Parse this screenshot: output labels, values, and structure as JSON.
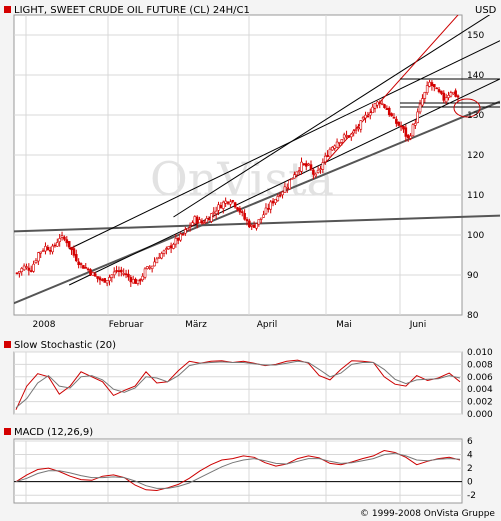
{
  "header": {
    "title": "LIGHT, SWEET CRUDE OIL FUTURE (CL) 24H/C1",
    "currency": "USD"
  },
  "watermark": "OnVista",
  "footer": {
    "copyright": "© 1999-2008 OnVista Gruppe"
  },
  "colors": {
    "candle": "#d40000",
    "channel": "#000000",
    "trend_gray": "#555555",
    "red_line": "#cc0000",
    "grid": "#d8d8d8",
    "background": "#ffffff",
    "page": "#f4f4f4"
  },
  "chart_data": [
    {
      "type": "candlestick",
      "title": "LIGHT, SWEET CRUDE OIL FUTURE (CL) 24H/C1",
      "unit_label": "USD",
      "x_tick_labels": [
        "2008",
        "Februar",
        "März",
        "April",
        "Mai",
        "Juni"
      ],
      "y_ticks": [
        80,
        90,
        100,
        110,
        120,
        130,
        140,
        150
      ],
      "ylim": [
        80,
        155
      ],
      "grid": true,
      "price_path": [
        [
          0,
          90.5
        ],
        [
          3,
          92.0
        ],
        [
          6,
          91.5
        ],
        [
          9,
          95.5
        ],
        [
          12,
          97.0
        ],
        [
          15,
          96.5
        ],
        [
          18,
          99.5
        ],
        [
          21,
          98.5
        ],
        [
          24,
          95.0
        ],
        [
          27,
          92.5
        ],
        [
          30,
          91.5
        ],
        [
          33,
          89.5
        ],
        [
          36,
          88.5
        ],
        [
          39,
          89.5
        ],
        [
          42,
          91.0
        ],
        [
          45,
          90.5
        ],
        [
          48,
          89.0
        ],
        [
          51,
          88.0
        ],
        [
          54,
          91.0
        ],
        [
          57,
          92.5
        ],
        [
          60,
          95.0
        ],
        [
          63,
          96.0
        ],
        [
          66,
          98.0
        ],
        [
          69,
          99.5
        ],
        [
          72,
          101.5
        ],
        [
          75,
          104.0
        ],
        [
          78,
          103.0
        ],
        [
          81,
          104.5
        ],
        [
          84,
          106.5
        ],
        [
          87,
          108.0
        ],
        [
          90,
          109.0
        ],
        [
          93,
          107.0
        ],
        [
          96,
          104.0
        ],
        [
          99,
          102.0
        ],
        [
          102,
          103.5
        ],
        [
          105,
          106.0
        ],
        [
          108,
          108.5
        ],
        [
          111,
          110.5
        ],
        [
          114,
          112.5
        ],
        [
          117,
          115.5
        ],
        [
          120,
          117.5
        ],
        [
          123,
          117.0
        ],
        [
          126,
          114.5
        ],
        [
          129,
          118.0
        ],
        [
          132,
          121.5
        ],
        [
          135,
          123.5
        ],
        [
          138,
          124.5
        ],
        [
          141,
          125.0
        ],
        [
          144,
          127.0
        ],
        [
          147,
          129.5
        ],
        [
          150,
          132.0
        ],
        [
          153,
          133.5
        ],
        [
          156,
          131.5
        ],
        [
          159,
          128.5
        ],
        [
          162,
          127.0
        ],
        [
          165,
          124.0
        ],
        [
          168,
          128.5
        ],
        [
          171,
          134.0
        ],
        [
          174,
          138.0
        ],
        [
          177,
          136.0
        ],
        [
          180,
          134.0
        ],
        [
          183,
          136.0
        ],
        [
          186,
          134.5
        ]
      ],
      "channel_lines": [
        {
          "x1": 22,
          "y1": 87.5,
          "x2": 186,
          "y2": 134.0
        },
        {
          "x1": 22,
          "y1": 96.5,
          "x2": 186,
          "y2": 143.5
        },
        {
          "x1": 66,
          "y1": 104.5,
          "x2": 186,
          "y2": 150.0
        }
      ],
      "trend_lines": [
        {
          "x1": 0,
          "y1": 81.5,
          "x2": 186,
          "y2": 129.0
        },
        {
          "x1": 0,
          "y1": 100.8,
          "x2": 186,
          "y2": 104.5
        }
      ],
      "red_trend_line": {
        "x1": 130,
        "y1": 118.0,
        "x2": 186,
        "y2": 155.0
      },
      "horizontal_lines": [
        139.0,
        133.0,
        132.0
      ]
    },
    {
      "type": "line",
      "title": "Slow Stochastic (20)",
      "y_ticks": [
        "0.010",
        "0.008",
        "0.006",
        "0.004",
        "0.002",
        "0.000"
      ],
      "ylim": [
        0.0,
        0.01
      ],
      "series": [
        {
          "color": "#cc0000",
          "values": [
            0.0007,
            0.0045,
            0.0065,
            0.006,
            0.0032,
            0.0045,
            0.0068,
            0.006,
            0.0052,
            0.003,
            0.0038,
            0.0045,
            0.0068,
            0.005,
            0.0052,
            0.007,
            0.0085,
            0.0082,
            0.0085,
            0.0086,
            0.0083,
            0.0085,
            0.0082,
            0.0078,
            0.008,
            0.0085,
            0.0087,
            0.0082,
            0.0062,
            0.0055,
            0.0072,
            0.0086,
            0.0085,
            0.0083,
            0.006,
            0.0048,
            0.0045,
            0.0062,
            0.0054,
            0.0058,
            0.0066,
            0.0052
          ]
        },
        {
          "color": "#777777",
          "values": [
            0.001,
            0.0025,
            0.005,
            0.0062,
            0.0045,
            0.0042,
            0.006,
            0.0062,
            0.0055,
            0.004,
            0.0035,
            0.0042,
            0.006,
            0.0058,
            0.0052,
            0.0062,
            0.0078,
            0.0082,
            0.0083,
            0.0084,
            0.0083,
            0.0083,
            0.0081,
            0.0079,
            0.0079,
            0.0082,
            0.0085,
            0.0083,
            0.0072,
            0.006,
            0.0066,
            0.008,
            0.0083,
            0.0083,
            0.0072,
            0.0056,
            0.0049,
            0.0055,
            0.0056,
            0.0057,
            0.0062,
            0.0058
          ]
        }
      ]
    },
    {
      "type": "line",
      "title": "MACD (12,26,9)",
      "y_ticks": [
        "6",
        "4",
        "2",
        "0",
        "-2"
      ],
      "ylim": [
        -3.0,
        6.0
      ],
      "zero_line": 0,
      "series": [
        {
          "color": "#cc0000",
          "values": [
            0.0,
            1.0,
            1.8,
            2.0,
            1.5,
            0.8,
            0.3,
            0.2,
            0.8,
            1.0,
            0.6,
            -0.5,
            -1.2,
            -1.3,
            -0.9,
            -0.4,
            0.5,
            1.6,
            2.5,
            3.2,
            3.4,
            3.8,
            3.6,
            2.8,
            2.3,
            2.6,
            3.4,
            3.8,
            3.5,
            2.7,
            2.5,
            2.9,
            3.4,
            3.8,
            4.6,
            4.3,
            3.6,
            2.5,
            3.0,
            3.4,
            3.6,
            3.2
          ]
        },
        {
          "color": "#777777",
          "values": [
            0.0,
            0.5,
            1.2,
            1.6,
            1.6,
            1.3,
            0.9,
            0.6,
            0.6,
            0.7,
            0.6,
            0.1,
            -0.6,
            -1.0,
            -1.0,
            -0.7,
            -0.2,
            0.6,
            1.4,
            2.2,
            2.8,
            3.2,
            3.4,
            3.1,
            2.7,
            2.6,
            3.0,
            3.4,
            3.4,
            3.0,
            2.7,
            2.8,
            3.1,
            3.4,
            4.0,
            4.2,
            3.8,
            3.2,
            3.1,
            3.3,
            3.4,
            3.3
          ]
        }
      ]
    }
  ]
}
